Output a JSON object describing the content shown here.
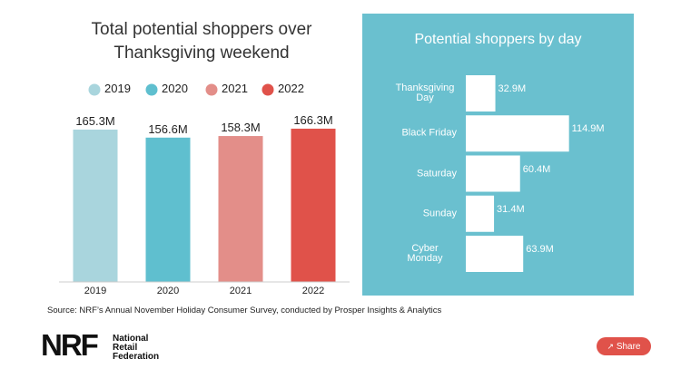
{
  "chart_data": [
    {
      "type": "bar",
      "title": "Total potential shoppers over Thanksgiving weekend",
      "categories": [
        "2019",
        "2020",
        "2021",
        "2022"
      ],
      "values": [
        165.3,
        156.6,
        158.3,
        166.3
      ],
      "value_labels": [
        "165.3M",
        "156.6M",
        "158.3M",
        "166.3M"
      ],
      "colors": [
        "#a9d5dd",
        "#5fbfcf",
        "#e38e89",
        "#e0524a"
      ],
      "ylim": [
        0,
        180
      ],
      "legend": "top"
    },
    {
      "type": "hbar",
      "title": "Potential shoppers by day",
      "categories": [
        "Thanksgiving Day",
        "Black Friday",
        "Saturday",
        "Sunday",
        "Cyber Monday"
      ],
      "values": [
        32.9,
        114.9,
        60.4,
        31.4,
        63.9
      ],
      "value_labels": [
        "32.9M",
        "114.9M",
        "60.4M",
        "31.4M",
        "63.9M"
      ],
      "color": "#ffffff",
      "background": "#6ac0cf",
      "xlim": [
        0,
        185
      ]
    }
  ],
  "source": "Source: NRF’s Annual November Holiday Consumer Survey, conducted by Prosper Insights & Analytics",
  "logo": {
    "mark": "NRF",
    "name": "National Retail Federation"
  },
  "share": "Share"
}
